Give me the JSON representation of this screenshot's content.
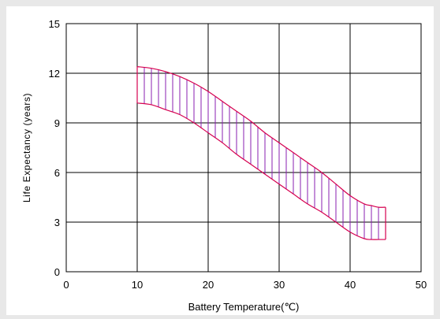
{
  "chart_data": {
    "type": "area",
    "title": "",
    "xlabel": "Battery Temperature(℃)",
    "ylabel": "Life Expectancy (years)",
    "xlim": [
      0,
      50
    ],
    "ylim": [
      0,
      15
    ],
    "x_ticks": [
      "0",
      "10",
      "20",
      "30",
      "40",
      "50"
    ],
    "y_ticks": [
      "0",
      "3",
      "6",
      "9",
      "12",
      "15"
    ],
    "grid": true,
    "band_color": "#d6004f",
    "hatch_color": "#8a1fb0",
    "series": [
      {
        "role": "upper",
        "x": [
          10,
          12,
          14,
          16,
          18,
          20,
          22,
          24,
          26,
          28,
          30,
          32,
          34,
          36,
          38,
          40,
          42,
          43,
          44,
          45
        ],
        "y": [
          12.4,
          12.3,
          12.1,
          11.8,
          11.4,
          10.9,
          10.3,
          9.7,
          9.1,
          8.4,
          7.8,
          7.2,
          6.6,
          6.0,
          5.3,
          4.6,
          4.1,
          4.0,
          3.9,
          3.9
        ]
      },
      {
        "role": "lower",
        "x": [
          10,
          12,
          14,
          16,
          18,
          20,
          22,
          24,
          26,
          28,
          30,
          32,
          34,
          36,
          38,
          40,
          42,
          43,
          44,
          45
        ],
        "y": [
          10.2,
          10.1,
          9.8,
          9.5,
          9.0,
          8.4,
          7.8,
          7.1,
          6.5,
          5.9,
          5.3,
          4.7,
          4.1,
          3.6,
          3.0,
          2.4,
          2.0,
          1.95,
          1.95,
          1.95
        ]
      }
    ]
  }
}
